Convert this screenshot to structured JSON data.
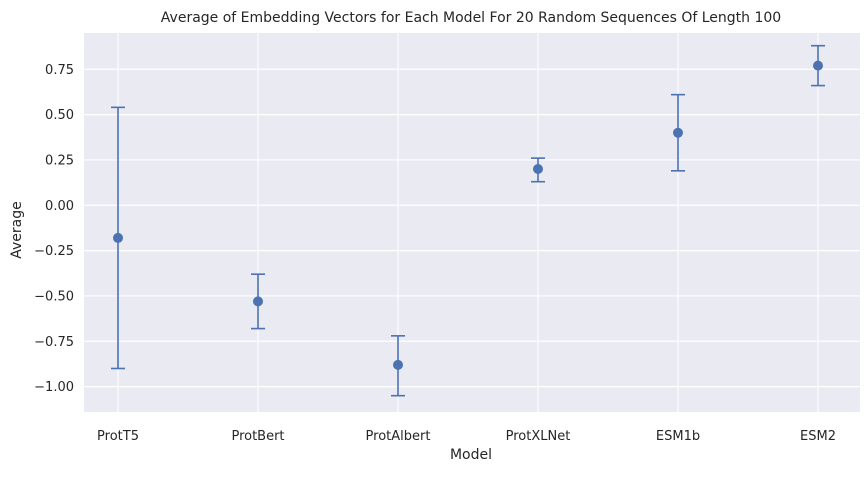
{
  "chart_data": {
    "type": "scatter",
    "title": "Average of Embedding Vectors for Each Model For 20 Random Sequences Of Length 100",
    "xlabel": "Model",
    "ylabel": "Average",
    "categories": [
      "ProtT5",
      "ProtBert",
      "ProtAlbert",
      "ProtXLNet",
      "ESM1b",
      "ESM2"
    ],
    "series": [
      {
        "values": [
          -0.18,
          -0.53,
          -0.88,
          0.2,
          0.4,
          0.77
        ],
        "error_low": [
          -0.9,
          -0.68,
          -1.05,
          0.13,
          0.19,
          0.66
        ],
        "error_high": [
          0.54,
          -0.38,
          -0.72,
          0.26,
          0.61,
          0.88
        ],
        "color": "#4c72b0"
      }
    ],
    "yticks": [
      "0.75",
      "0.50",
      "0.25",
      "0.00",
      "−0.25",
      "−0.50",
      "−0.75",
      "−1.00"
    ],
    "ytick_values": [
      0.75,
      0.5,
      0.25,
      0.0,
      -0.25,
      -0.5,
      -0.75,
      -1.0
    ],
    "ylim": [
      -1.14,
      0.95
    ],
    "grid": true,
    "colors": {
      "background": "#eaeaf2",
      "grid": "#ffffff",
      "marker": "#4c72b0"
    }
  }
}
